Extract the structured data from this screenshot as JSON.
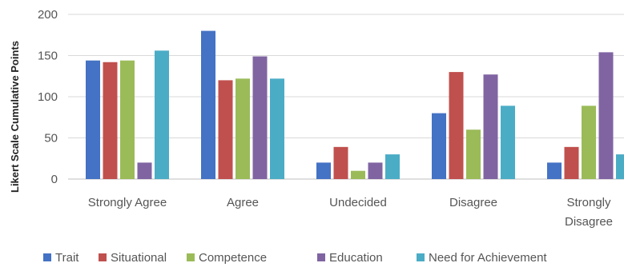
{
  "chart_data": {
    "type": "bar",
    "ylabel": "Likert Scale Cumulative Points",
    "ylim": [
      0,
      200
    ],
    "yticks": [
      0,
      50,
      100,
      150,
      200
    ],
    "grid": true,
    "legend_position": "bottom",
    "categories": [
      [
        "Strongly Agree"
      ],
      [
        "Agree"
      ],
      [
        "Undecided"
      ],
      [
        "Disagree"
      ],
      [
        "Strongly",
        "Disagree"
      ]
    ],
    "series": [
      {
        "name": "Trait",
        "color": "#4472C4",
        "values": [
          144,
          180,
          20,
          80,
          20
        ]
      },
      {
        "name": "Situational",
        "color": "#C0504D",
        "values": [
          142,
          120,
          39,
          130,
          39
        ]
      },
      {
        "name": "Competence",
        "color": "#9BBB59",
        "values": [
          144,
          122,
          10,
          60,
          89
        ]
      },
      {
        "name": "Education",
        "color": "#8064A2",
        "values": [
          20,
          149,
          20,
          127,
          154
        ]
      },
      {
        "name": "Need for Achievement",
        "color": "#4BACC6",
        "values": [
          156,
          122,
          30,
          89,
          30
        ]
      }
    ]
  }
}
